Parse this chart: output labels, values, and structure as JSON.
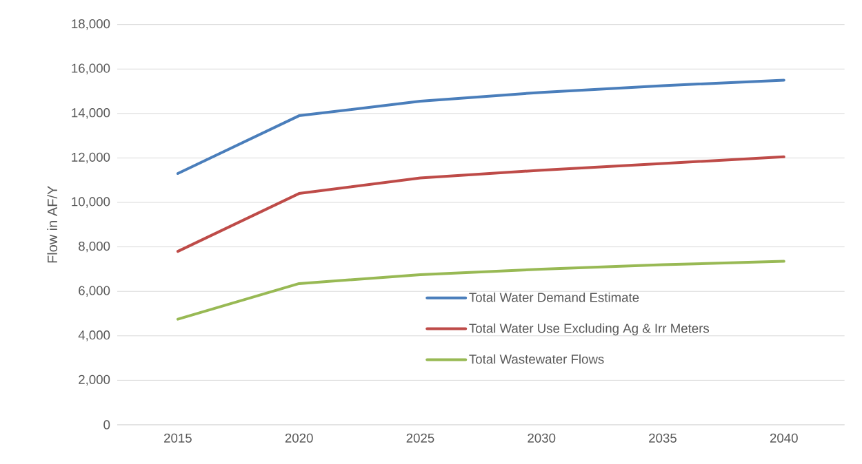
{
  "chart_data": {
    "type": "line",
    "ylabel": "Flow in AF/Y",
    "categories": [
      "2015",
      "2020",
      "2025",
      "2030",
      "2035",
      "2040"
    ],
    "series": [
      {
        "name": "Total Water Demand Estimate",
        "color": "#4a7ebb",
        "values": [
          11300,
          13900,
          14550,
          14950,
          15250,
          15500
        ]
      },
      {
        "name": "Total Water Use Excluding Ag & Irr Meters",
        "color": "#be4b48",
        "values": [
          7800,
          10400,
          11100,
          11450,
          11750,
          12050
        ]
      },
      {
        "name": "Total Wastewater Flows",
        "color": "#98b954",
        "values": [
          4750,
          6350,
          6750,
          7000,
          7200,
          7350
        ]
      }
    ],
    "ylim": [
      0,
      18000
    ],
    "yticks": [
      {
        "value": 0,
        "label": "0"
      },
      {
        "value": 2000,
        "label": "2,000"
      },
      {
        "value": 4000,
        "label": "4,000"
      },
      {
        "value": 6000,
        "label": "6,000"
      },
      {
        "value": 8000,
        "label": "8,000"
      },
      {
        "value": 10000,
        "label": "10,000"
      },
      {
        "value": 12000,
        "label": "12,000"
      },
      {
        "value": 14000,
        "label": "14,000"
      },
      {
        "value": 16000,
        "label": "16,000"
      },
      {
        "value": 18000,
        "label": "18,000"
      }
    ],
    "grid": "y",
    "legend": "bottom",
    "line_style": "solid",
    "marker": "none"
  }
}
